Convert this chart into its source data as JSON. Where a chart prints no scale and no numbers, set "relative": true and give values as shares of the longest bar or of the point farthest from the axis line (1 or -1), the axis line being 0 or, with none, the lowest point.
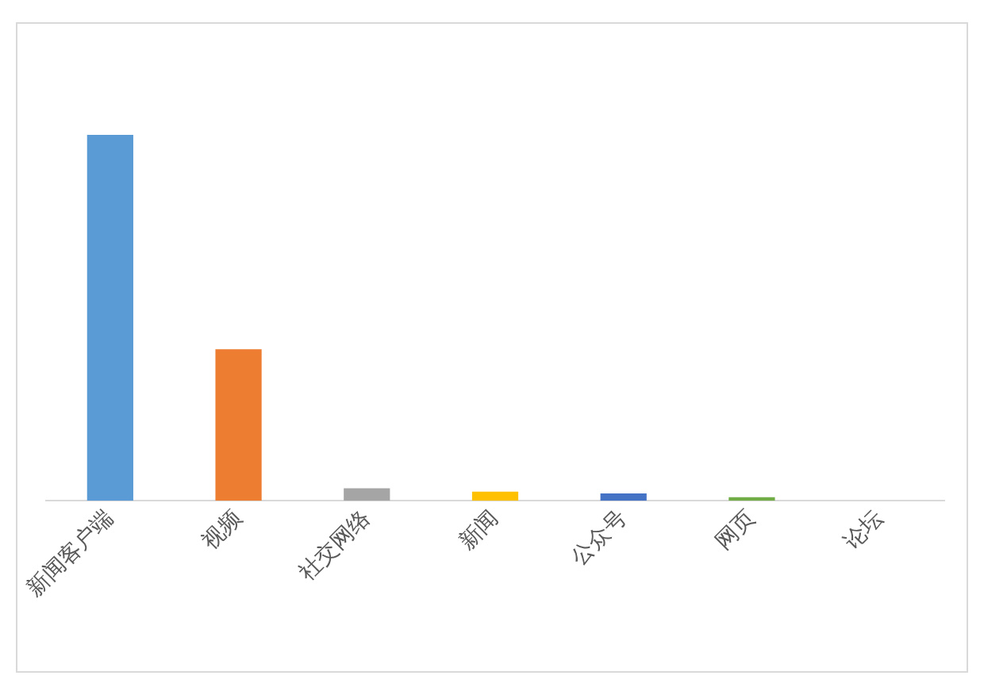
{
  "chart_data": {
    "type": "bar",
    "relative": true,
    "categories": [
      "新闻客户端",
      "视频",
      "社交网络",
      "新闻",
      "公众号",
      "网页",
      "论坛"
    ],
    "values": [
      1,
      0.414,
      0.034,
      0.025,
      0.02,
      0.01,
      0
    ],
    "colors": [
      "#5b9bd5",
      "#ed7d31",
      "#a5a5a5",
      "#ffc000",
      "#4472c4",
      "#70ad47",
      "#255e91"
    ],
    "grid": false,
    "legend": false
  }
}
